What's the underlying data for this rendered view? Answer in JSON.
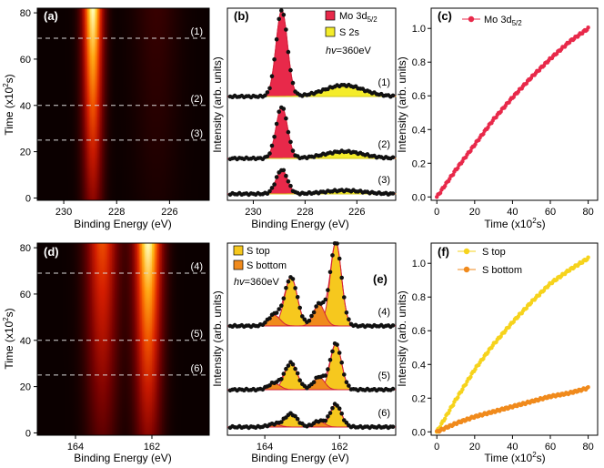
{
  "chart_data": [
    {
      "panel": "a",
      "type": "heatmap",
      "panel_label": "(a)",
      "xlabel": "Binding Energy (eV)",
      "ylabel": "Time (x10²s)",
      "ylabel_base": "Time (x10",
      "ylabel_sup": "2",
      "ylabel_tail": "s)",
      "xlim": [
        231,
        224.5
      ],
      "ylim": [
        -1,
        82
      ],
      "xticks": [
        230,
        228,
        226
      ],
      "yticks": [
        0,
        20,
        40,
        60,
        80
      ],
      "peaks": [
        {
          "center": 228.9,
          "width": 0.28,
          "intensity": 1.0
        },
        {
          "center": 226.5,
          "width": 0.6,
          "intensity": 0.12
        }
      ],
      "cuts": [
        {
          "time": 69,
          "label": "(1)"
        },
        {
          "time": 40,
          "label": "(2)"
        },
        {
          "time": 25,
          "label": "(3)"
        }
      ]
    },
    {
      "panel": "b",
      "type": "line",
      "panel_label": "(b)",
      "xlabel": "Binding Energy (eV)",
      "ylabel": "Intensity (arb. units)",
      "xlim": [
        231,
        224.5
      ],
      "xticks": [
        230,
        228,
        226
      ],
      "legend": [
        {
          "name_base": "Mo 3d",
          "name_sub": "5/2",
          "color": "#e8294a"
        },
        {
          "name": "S 2s",
          "color": "#f4ec2a"
        }
      ],
      "photon_energy": "hv=360eV",
      "photon_symbol": "hv",
      "photon_value": "=360eV",
      "spectra": [
        {
          "label": "(1)",
          "mo_amp": 1.0,
          "s_amp": 0.13
        },
        {
          "label": "(2)",
          "mo_amp": 0.6,
          "s_amp": 0.08
        },
        {
          "label": "(3)",
          "mo_amp": 0.28,
          "s_amp": 0.04
        }
      ],
      "mo_center": 228.9,
      "s_center": 226.5
    },
    {
      "panel": "c",
      "type": "scatter",
      "panel_label": "(c)",
      "xlabel": "Time (x10²s)",
      "xlabel_base": "Time (x10",
      "xlabel_sup": "2",
      "xlabel_tail": "s)",
      "ylabel": "Intensity (arb. units)",
      "xlim": [
        -3,
        85
      ],
      "ylim": [
        -0.02,
        1.12
      ],
      "xticks": [
        0,
        20,
        40,
        60,
        80
      ],
      "yticks": [
        0.0,
        0.2,
        0.4,
        0.6,
        0.8,
        1.0
      ],
      "series": [
        {
          "name_base": "Mo 3d",
          "name_sub": "5/2",
          "color": "#e8294a",
          "x": [
            0,
            10,
            20,
            30,
            40,
            50,
            60,
            70,
            80
          ],
          "y": [
            0.0,
            0.16,
            0.31,
            0.46,
            0.59,
            0.71,
            0.82,
            0.92,
            1.0
          ]
        }
      ]
    },
    {
      "panel": "d",
      "type": "heatmap",
      "panel_label": "(d)",
      "xlabel": "Binding Energy (eV)",
      "ylabel": "Time (x10²s)",
      "ylabel_base": "Time (x10",
      "ylabel_sup": "2",
      "ylabel_tail": "s)",
      "xlim": [
        165,
        160.5
      ],
      "ylim": [
        -1,
        82
      ],
      "xticks": [
        164,
        162
      ],
      "yticks": [
        0,
        20,
        40,
        60,
        80
      ],
      "peaks": [
        {
          "center": 163.3,
          "width": 0.3,
          "intensity": 0.65
        },
        {
          "center": 162.1,
          "width": 0.26,
          "intensity": 1.0
        }
      ],
      "cuts": [
        {
          "time": 69,
          "label": "(4)"
        },
        {
          "time": 40,
          "label": "(5)"
        },
        {
          "time": 25,
          "label": "(6)"
        }
      ]
    },
    {
      "panel": "e",
      "type": "line",
      "panel_label": "(e)",
      "xlabel": "Binding Energy (eV)",
      "ylabel": "Intensity (arb. units)",
      "xlim": [
        165,
        160.5
      ],
      "xticks": [
        164,
        162
      ],
      "legend": [
        {
          "name": "S top",
          "color": "#f6c81e"
        },
        {
          "name": "S bottom",
          "color": "#f08a1c"
        }
      ],
      "photon_energy": "hv=360eV",
      "photon_symbol": "hv",
      "photon_value": "=360eV",
      "spectra": [
        {
          "label": "(4)",
          "top_amp": 1.0,
          "bottom_amp": 0.26
        },
        {
          "label": "(5)",
          "top_amp": 0.55,
          "bottom_amp": 0.15
        },
        {
          "label": "(6)",
          "top_amp": 0.27,
          "bottom_amp": 0.07
        }
      ],
      "top_centers": [
        163.3,
        162.1
      ],
      "bottom_centers": [
        163.75,
        162.55
      ]
    },
    {
      "panel": "f",
      "type": "scatter",
      "panel_label": "(f)",
      "xlabel": "Time (x10²s)",
      "xlabel_base": "Time (x10",
      "xlabel_sup": "2",
      "xlabel_tail": "s)",
      "ylabel": "Intensity (arb. units)",
      "xlim": [
        -3,
        85
      ],
      "ylim": [
        -0.02,
        1.12
      ],
      "xticks": [
        0,
        20,
        40,
        60,
        80
      ],
      "yticks": [
        0.0,
        0.2,
        0.4,
        0.6,
        0.8,
        1.0
      ],
      "series": [
        {
          "name": "S top",
          "color": "#f6d31c",
          "x": [
            0,
            10,
            20,
            30,
            40,
            50,
            60,
            70,
            80
          ],
          "y": [
            0.0,
            0.19,
            0.37,
            0.52,
            0.65,
            0.77,
            0.88,
            0.96,
            1.03
          ]
        },
        {
          "name": "S bottom",
          "color": "#f08a1c",
          "x": [
            0,
            10,
            20,
            30,
            40,
            50,
            60,
            70,
            80
          ],
          "y": [
            0.0,
            0.05,
            0.09,
            0.12,
            0.15,
            0.18,
            0.21,
            0.23,
            0.26
          ]
        }
      ]
    }
  ]
}
